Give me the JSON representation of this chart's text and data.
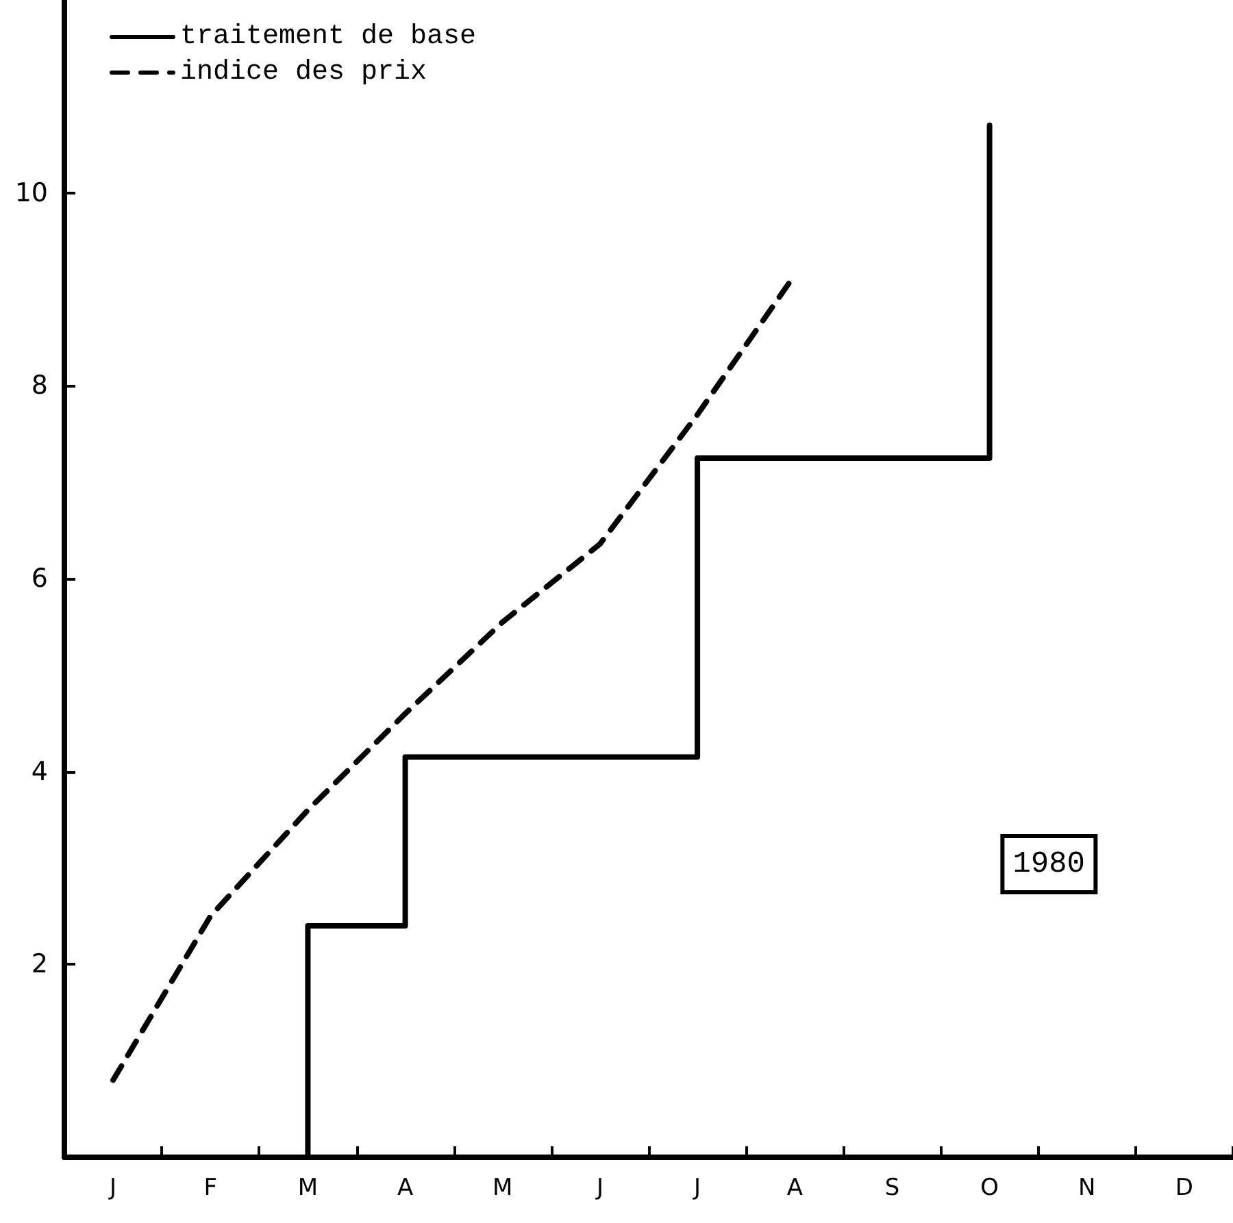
{
  "chart_data": {
    "type": "line",
    "categories": [
      "J",
      "F",
      "M",
      "A",
      "M",
      "J",
      "J",
      "A",
      "S",
      "O",
      "N",
      "D"
    ],
    "ylim": [
      0,
      12
    ],
    "yticks": [
      2,
      4,
      6,
      8,
      10
    ],
    "grid": false,
    "legend": "top left",
    "marker": "none",
    "annotations": [
      "1980"
    ],
    "series": [
      {
        "name": "traitement de base",
        "type": "step",
        "color": "#000000",
        "line_style": "solid",
        "values": [
          null,
          0,
          2.4,
          4.15,
          4.15,
          4.15,
          7.25,
          7.25,
          7.25,
          10.7,
          null,
          null
        ]
      },
      {
        "name": "indice des prix",
        "color": "#000000",
        "line_style": "dashed",
        "values": [
          0.8,
          2.5,
          3.6,
          4.6,
          5.55,
          6.36,
          7.7,
          9.15,
          null,
          null,
          null,
          null
        ]
      }
    ]
  }
}
